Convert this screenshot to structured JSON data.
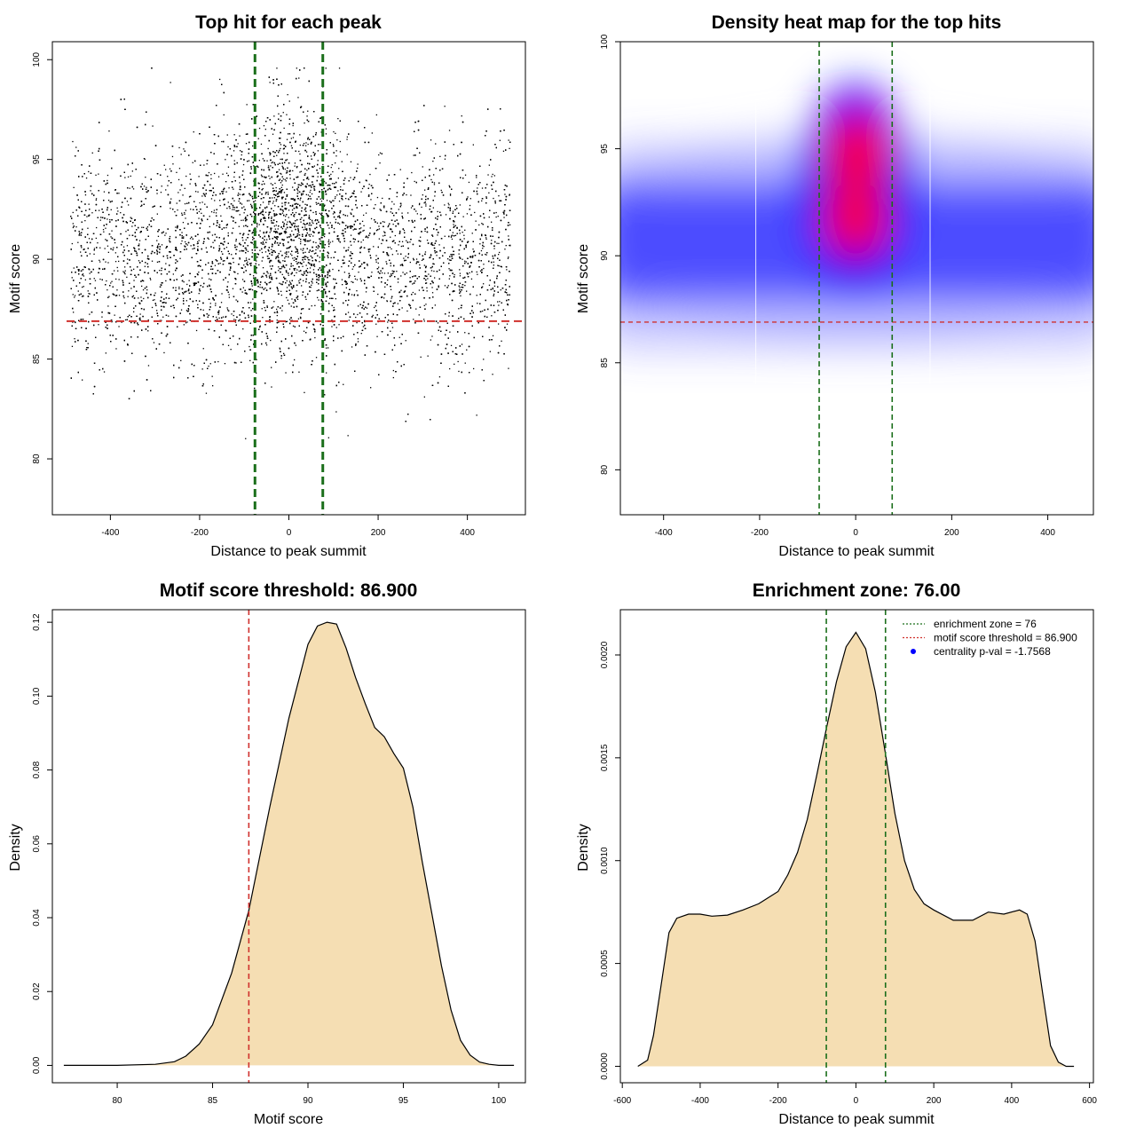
{
  "chart_data": [
    {
      "type": "scatter",
      "title": "Top hit for each peak",
      "xlabel": "Distance to peak summit",
      "ylabel": "Motif score",
      "xlim": [
        -530,
        530
      ],
      "ylim": [
        77.2,
        100.9
      ],
      "x_ticks": [
        -400,
        -200,
        0,
        200,
        400
      ],
      "y_ticks": [
        80,
        85,
        90,
        95,
        100
      ],
      "point_range_x": [
        -490,
        495
      ],
      "point_distribution": {
        "uniform_mean": 90.2,
        "uniform_sd": 2.7,
        "central_mean": 92.4,
        "central_sd": 2.6,
        "central_sd_x": 70
      },
      "hlines": [
        {
          "y": 86.9,
          "color": "#d0312d",
          "style": "dashed"
        }
      ],
      "vlines": [
        {
          "x": -76,
          "color": "#1b6f1b",
          "style": "dashed"
        },
        {
          "x": 76,
          "color": "#1b6f1b",
          "style": "dashed"
        }
      ]
    },
    {
      "type": "heatmap",
      "title": "Density heat map for the top hits",
      "xlabel": "Distance to peak summit",
      "ylabel": "Motif score",
      "xlim": [
        -490,
        495
      ],
      "ylim": [
        77.9,
        100
      ],
      "x_ticks": [
        -400,
        -200,
        0,
        200,
        400
      ],
      "y_ticks": [
        80,
        85,
        90,
        95,
        100
      ],
      "hotspots": [
        {
          "x": 5,
          "y": 95.0
        },
        {
          "x": 0,
          "y": 91.4
        }
      ],
      "colors": [
        "#ffffff",
        "#0000ff",
        "#ff0000"
      ],
      "hlines": [
        {
          "y": 86.9,
          "color": "#d0312d",
          "style": "dashed"
        }
      ],
      "vlines": [
        {
          "x": -76,
          "color": "#1b6f1b",
          "style": "dashed"
        },
        {
          "x": 76,
          "color": "#1b6f1b",
          "style": "dashed"
        }
      ]
    },
    {
      "type": "area",
      "title": "Motif score threshold: 86.900",
      "xlabel": "Motif score",
      "ylabel": "Density",
      "xlim": [
        76.6,
        101.4
      ],
      "ylim": [
        -0.0047,
        0.1234
      ],
      "x_ticks": [
        80,
        85,
        90,
        95,
        100
      ],
      "y_ticks": [
        0.0,
        0.02,
        0.04,
        0.06,
        0.08,
        0.1,
        0.12
      ],
      "y_tick_labels": [
        "0.00",
        "0.02",
        "0.04",
        "0.06",
        "0.08",
        "0.10",
        "0.12"
      ],
      "fill": "#f5deb3",
      "x": [
        77.2,
        80,
        82,
        83,
        83.6,
        84.3,
        85,
        86,
        86.9,
        88,
        89,
        90,
        90.5,
        91,
        91.5,
        92,
        92.5,
        93,
        93.5,
        94,
        94.5,
        95,
        95.5,
        96,
        96.5,
        97,
        97.5,
        98,
        98.5,
        99,
        99.5,
        100,
        100.8
      ],
      "values": [
        0.0,
        0.0,
        0.0003,
        0.001,
        0.0025,
        0.0058,
        0.011,
        0.025,
        0.042,
        0.07,
        0.094,
        0.114,
        0.119,
        0.12,
        0.1195,
        0.113,
        0.105,
        0.098,
        0.0915,
        0.089,
        0.0845,
        0.0805,
        0.07,
        0.055,
        0.041,
        0.027,
        0.015,
        0.0068,
        0.0028,
        0.0009,
        0.0003,
        0.0,
        0.0
      ],
      "vlines": [
        {
          "x": 86.9,
          "color": "#d0312d",
          "style": "dashed"
        }
      ]
    },
    {
      "type": "area",
      "title": "Enrichment zone: 76.00",
      "xlabel": "Distance to peak summit",
      "ylabel": "Density",
      "xlim": [
        -605,
        610
      ],
      "ylim": [
        -8e-05,
        0.00222
      ],
      "x_ticks": [
        -600,
        -400,
        -200,
        0,
        200,
        400,
        600
      ],
      "y_ticks": [
        0.0,
        0.0005,
        0.001,
        0.0015,
        0.002
      ],
      "y_tick_labels": [
        "0.0000",
        "0.0005",
        "0.0010",
        "0.0015",
        "0.0020"
      ],
      "fill": "#f5deb3",
      "x": [
        -560,
        -535,
        -520,
        -500,
        -480,
        -460,
        -430,
        -400,
        -370,
        -330,
        -290,
        -250,
        -200,
        -175,
        -150,
        -125,
        -100,
        -75,
        -50,
        -25,
        0,
        25,
        50,
        75,
        100,
        125,
        150,
        175,
        200,
        250,
        300,
        340,
        380,
        420,
        440,
        460,
        480,
        500,
        520,
        540,
        560
      ],
      "values": [
        0.0,
        3e-05,
        0.00015,
        0.0004,
        0.00065,
        0.00072,
        0.00074,
        0.00074,
        0.00073,
        0.000735,
        0.00076,
        0.00079,
        0.00085,
        0.00093,
        0.00104,
        0.0012,
        0.00142,
        0.00165,
        0.00187,
        0.00204,
        0.00211,
        0.00203,
        0.00182,
        0.00153,
        0.00123,
        0.001,
        0.00086,
        0.00079,
        0.00076,
        0.00071,
        0.00071,
        0.00075,
        0.00074,
        0.00076,
        0.00074,
        0.00061,
        0.00035,
        0.0001,
        2e-05,
        0.0,
        0.0
      ],
      "vlines": [
        {
          "x": -76,
          "color": "#1b6f1b",
          "style": "dashed"
        },
        {
          "x": 76,
          "color": "#1b6f1b",
          "style": "dashed"
        }
      ],
      "legend": {
        "position": "top-right",
        "entries": [
          {
            "label": "enrichment zone = 76",
            "symbol": "line",
            "color": "#1b6f1b"
          },
          {
            "label": "motif score threshold = 86.900",
            "symbol": "line",
            "color": "#d0312d"
          },
          {
            "label": "centrality p-val = -1.7568",
            "symbol": "point",
            "color": "#0000ff"
          }
        ]
      }
    }
  ]
}
